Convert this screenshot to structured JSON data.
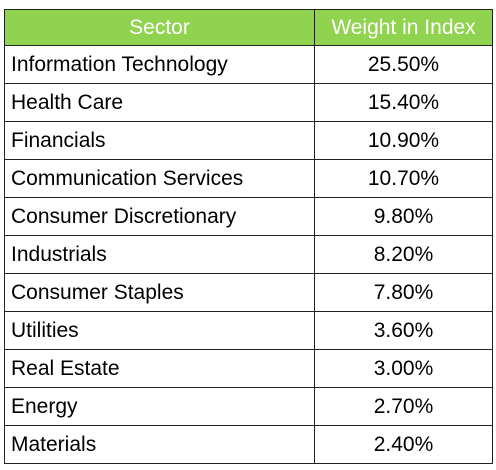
{
  "colors": {
    "header_background": "#8fd34f",
    "header_text": "#ffffff",
    "border": "#222222"
  },
  "chart_data": {
    "type": "table",
    "columns": [
      "Sector",
      "Weight in Index"
    ],
    "rows": [
      {
        "sector": "Information Technology",
        "weight": "25.50%"
      },
      {
        "sector": "Health Care",
        "weight": "15.40%"
      },
      {
        "sector": "Financials",
        "weight": "10.90%"
      },
      {
        "sector": "Communication Services",
        "weight": "10.70%"
      },
      {
        "sector": "Consumer Discretionary",
        "weight": "9.80%"
      },
      {
        "sector": "Industrials",
        "weight": "8.20%"
      },
      {
        "sector": "Consumer Staples",
        "weight": "7.80%"
      },
      {
        "sector": "Utilities",
        "weight": "3.60%"
      },
      {
        "sector": "Real Estate",
        "weight": "3.00%"
      },
      {
        "sector": "Energy",
        "weight": "2.70%"
      },
      {
        "sector": "Materials",
        "weight": "2.40%"
      }
    ]
  }
}
